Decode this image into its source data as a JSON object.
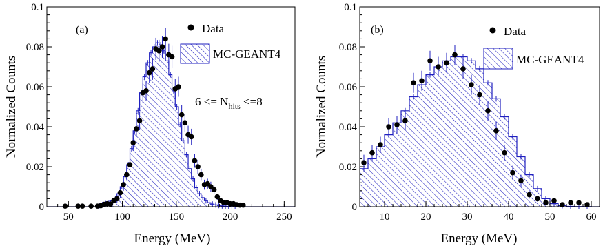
{
  "colors": {
    "mc": "#1f1fbf",
    "data": "#000000",
    "axis": "#000000"
  },
  "chart_data": [
    {
      "type": "histogram",
      "panel_label": "(a)",
      "xlabel": "Energy (MeV)",
      "ylabel": "Normalized Counts",
      "xlim": [
        30,
        260
      ],
      "ylim": [
        0,
        0.1
      ],
      "xticks": [
        50,
        100,
        150,
        200,
        250
      ],
      "xtick_labels": [
        "50",
        "100",
        "150",
        "200",
        "250"
      ],
      "yticks": [
        0,
        0.02,
        0.04,
        0.06,
        0.08,
        0.1
      ],
      "ytick_labels": [
        "0",
        "0.02",
        "0.04",
        "0.06",
        "0.08",
        "0.1"
      ],
      "legend": {
        "data_label": "Data",
        "mc_label": "MC-GEANT4",
        "position": "top-right"
      },
      "annotation": {
        "prefix": "6 <= N",
        "subscript": "hits",
        "suffix": " <=8"
      },
      "mc_bin_edges": [
        30,
        77,
        80,
        83,
        86,
        89,
        92,
        95,
        98,
        101,
        104,
        107,
        110,
        113,
        116,
        119,
        122,
        125,
        128,
        131,
        134,
        137,
        140,
        143,
        146,
        149,
        152,
        155,
        158,
        161,
        164,
        167,
        170,
        173,
        176,
        179,
        182,
        185,
        188,
        191,
        194,
        197,
        200,
        203,
        206,
        260
      ],
      "mc_values": [
        0,
        0.0005,
        0.001,
        0.0015,
        0.002,
        0.003,
        0.004,
        0.0065,
        0.01,
        0.015,
        0.021,
        0.029,
        0.038,
        0.048,
        0.057,
        0.065,
        0.072,
        0.077,
        0.08,
        0.082,
        0.081,
        0.078,
        0.073,
        0.066,
        0.058,
        0.05,
        0.041,
        0.033,
        0.026,
        0.019,
        0.014,
        0.0095,
        0.0065,
        0.0045,
        0.003,
        0.002,
        0.0013,
        0.0009,
        0.0006,
        0.0004,
        0.0003,
        0.0002,
        0.0001,
        0.0001,
        0
      ],
      "data_x": [
        47,
        59,
        63,
        71,
        77,
        80,
        83,
        86,
        89,
        92,
        95,
        98,
        101,
        104,
        107,
        110,
        113,
        116,
        119,
        122,
        125,
        128,
        131,
        134,
        137,
        140,
        143,
        146,
        149,
        152,
        155,
        158,
        161,
        164,
        167,
        170,
        173,
        176,
        179,
        182,
        185,
        188,
        191,
        194,
        197,
        200,
        203,
        206,
        209,
        212
      ],
      "data_y": [
        0.0003,
        0.0003,
        0.0003,
        0.0003,
        0.0003,
        0.0005,
        0.0012,
        0.0015,
        0.0013,
        0.003,
        0.004,
        0.007,
        0.011,
        0.016,
        0.021,
        0.032,
        0.039,
        0.043,
        0.057,
        0.058,
        0.067,
        0.069,
        0.079,
        0.078,
        0.08,
        0.084,
        0.076,
        0.075,
        0.059,
        0.06,
        0.046,
        0.042,
        0.036,
        0.035,
        0.023,
        0.02,
        0.016,
        0.011,
        0.0115,
        0.01,
        0.0085,
        0.005,
        0.003,
        0.002,
        0.002,
        0.0015,
        0.0015,
        0.001,
        0.0008,
        0.0008
      ],
      "data_err": [
        0.0003,
        0.0003,
        0.0003,
        0.0003,
        0.0003,
        0.0005,
        0.001,
        0.001,
        0.001,
        0.0015,
        0.002,
        0.0025,
        0.003,
        0.003,
        0.0035,
        0.004,
        0.004,
        0.0045,
        0.005,
        0.005,
        0.005,
        0.0055,
        0.0055,
        0.0055,
        0.0055,
        0.0055,
        0.0055,
        0.0055,
        0.005,
        0.005,
        0.005,
        0.0045,
        0.0045,
        0.004,
        0.0035,
        0.0035,
        0.003,
        0.0025,
        0.0025,
        0.0025,
        0.002,
        0.0015,
        0.0012,
        0.001,
        0.001,
        0.0008,
        0.0008,
        0.0006,
        0.0005,
        0.0005
      ]
    },
    {
      "type": "histogram",
      "panel_label": "(b)",
      "xlabel": "Energy (MeV)",
      "ylabel": "Normalized Counts",
      "xlim": [
        4,
        62
      ],
      "ylim": [
        0,
        0.1
      ],
      "xticks": [
        10,
        20,
        30,
        40,
        50,
        60
      ],
      "xtick_labels": [
        "10",
        "20",
        "30",
        "40",
        "50",
        "60"
      ],
      "yticks": [
        0,
        0.02,
        0.04,
        0.06,
        0.08,
        0.1
      ],
      "ytick_labels": [
        "0",
        "0.02",
        "0.04",
        "0.06",
        "0.08",
        "0.1"
      ],
      "legend": {
        "data_label": "Data",
        "mc_label": "MC-GEANT4",
        "position": "top-center"
      },
      "mc_bin_edges": [
        4,
        6,
        8,
        10,
        12,
        14,
        16,
        18,
        20,
        22,
        24,
        26,
        28,
        30,
        32,
        34,
        36,
        38,
        40,
        42,
        44,
        46,
        48,
        50,
        52,
        54,
        56,
        58,
        60,
        62
      ],
      "mc_values": [
        0.019,
        0.024,
        0.03,
        0.036,
        0.042,
        0.048,
        0.055,
        0.061,
        0.066,
        0.07,
        0.073,
        0.075,
        0.075,
        0.073,
        0.069,
        0.062,
        0.054,
        0.045,
        0.035,
        0.025,
        0.016,
        0.009,
        0.004,
        0.0015,
        0.0005,
        0.0002,
        0.0001,
        0.0001,
        0
      ],
      "data_x": [
        5,
        7,
        9,
        11,
        13,
        15,
        17,
        19,
        21,
        23,
        25,
        27,
        29,
        31,
        33,
        35,
        37,
        39,
        41,
        43,
        45,
        47,
        49,
        51,
        53,
        55,
        57,
        59
      ],
      "data_y": [
        0.022,
        0.027,
        0.031,
        0.04,
        0.041,
        0.043,
        0.062,
        0.063,
        0.073,
        0.07,
        0.072,
        0.076,
        0.069,
        0.061,
        0.056,
        0.048,
        0.038,
        0.027,
        0.017,
        0.013,
        0.006,
        0.004,
        0.002,
        0.003,
        0.001,
        0.002,
        0.002,
        0.001
      ],
      "data_err": [
        0.004,
        0.004,
        0.004,
        0.0045,
        0.0045,
        0.0045,
        0.005,
        0.005,
        0.005,
        0.005,
        0.005,
        0.005,
        0.005,
        0.005,
        0.005,
        0.005,
        0.0045,
        0.004,
        0.0035,
        0.003,
        0.002,
        0.0015,
        0.001,
        0.001,
        0.0007,
        0.0007,
        0.0007,
        0.0006
      ]
    }
  ]
}
